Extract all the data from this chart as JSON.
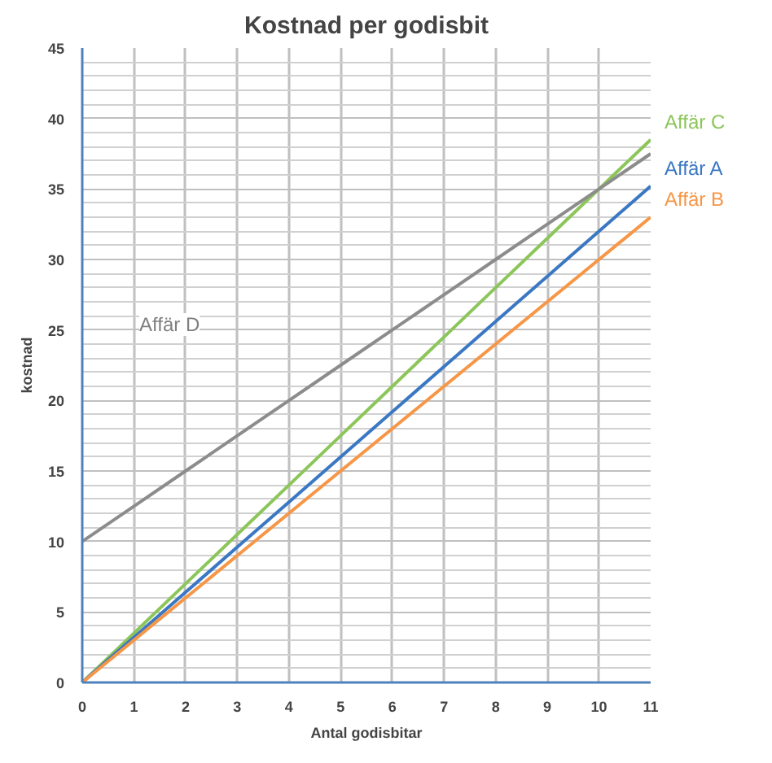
{
  "chart_data": {
    "type": "line",
    "title": "Kostnad per godisbit",
    "xlabel": "Antal godisbitar",
    "ylabel": "kostnad",
    "xlim": [
      0,
      11
    ],
    "xticks": [
      0,
      1,
      2,
      3,
      4,
      5,
      6,
      7,
      8,
      9,
      10,
      11
    ],
    "ylim": [
      0,
      45
    ],
    "yticks": [
      0,
      5,
      10,
      15,
      20,
      25,
      30,
      35,
      40,
      45
    ],
    "grid": true,
    "legend": false,
    "marker": "none",
    "line_style": "solid",
    "series": [
      {
        "name": "Affär C",
        "color": "#8cc65a",
        "x": [
          0,
          1,
          2,
          3,
          4,
          5,
          6,
          7,
          8,
          9,
          10,
          11
        ],
        "values": [
          0,
          3.5,
          7,
          10.5,
          14,
          17.5,
          21,
          24.5,
          28,
          31.5,
          35,
          38.5
        ]
      },
      {
        "name": "Affär A",
        "color": "#3b78c3",
        "x": [
          0,
          1,
          2,
          3,
          4,
          5,
          6,
          7,
          8,
          9,
          10,
          11
        ],
        "values": [
          0,
          3.2,
          6.4,
          9.6,
          12.8,
          16,
          19.2,
          22.4,
          25.6,
          28.8,
          32,
          35.2
        ]
      },
      {
        "name": "Affär B",
        "color": "#f79646",
        "x": [
          0,
          1,
          2,
          3,
          4,
          5,
          6,
          7,
          8,
          9,
          10,
          11
        ],
        "values": [
          0,
          3,
          6,
          9,
          12,
          15,
          18,
          21,
          24,
          27,
          30,
          33
        ]
      },
      {
        "color": "#8c8c8c",
        "x": [
          0,
          1,
          2,
          3,
          4,
          5,
          6,
          7,
          8,
          9,
          10,
          11
        ],
        "values": [
          10,
          12.5,
          15,
          17.5,
          20,
          22.5,
          25,
          27.5,
          30,
          32.5,
          35,
          37.5
        ]
      }
    ],
    "annotations": [
      "Affär D"
    ]
  }
}
